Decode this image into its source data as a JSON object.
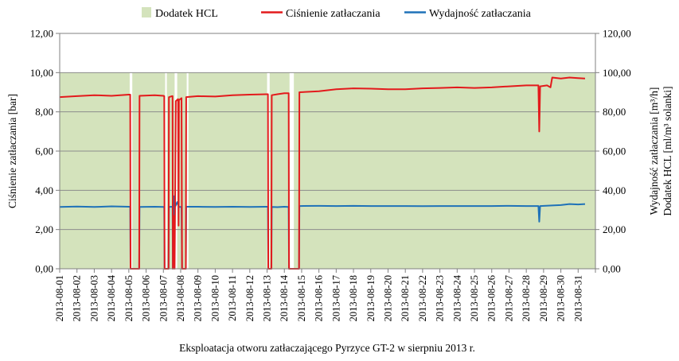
{
  "chart_data": {
    "type": "area",
    "title": "",
    "xlabel": "Eksploatacja otworu zatłaczającego Pyrzyce GT-2 w sierpniu 2013 r.",
    "ylabel_left": "Ciśnienie zatłaczania [bar]",
    "ylabel_right_line1": "Wydajność zatłaczania [m³/h]",
    "ylabel_right_line2": "Dodatek HCL [ml/m³ solanki]",
    "ylim_left": [
      0,
      12
    ],
    "ylim_right": [
      0,
      120
    ],
    "left_ticks": [
      "0,00",
      "2,00",
      "4,00",
      "6,00",
      "8,00",
      "10,00",
      "12,00"
    ],
    "right_ticks": [
      "0,00",
      "20,00",
      "40,00",
      "60,00",
      "80,00",
      "100,00",
      "120,00"
    ],
    "x_range": [
      "2013-08-01",
      "2013-08-32"
    ],
    "categories": [
      "2013-08-01",
      "2013-08-02",
      "2013-08-03",
      "2013-08-04",
      "2013-08-05",
      "2013-08-06",
      "2013-08-07",
      "2013-08-08",
      "2013-08-09",
      "2013-08-10",
      "2013-08-11",
      "2013-08-12",
      "2013-08-13",
      "2013-08-14",
      "2013-08-15",
      "2013-08-16",
      "2013-08-17",
      "2013-08-18",
      "2013-08-19",
      "2013-08-20",
      "2013-08-21",
      "2013-08-22",
      "2013-08-23",
      "2013-08-24",
      "2013-08-25",
      "2013-08-26",
      "2013-08-27",
      "2013-08-28",
      "2013-08-29",
      "2013-08-30",
      "2013-08-31"
    ],
    "grid": "horizontal",
    "legend_position": "top",
    "legend": [
      "Dodatek HCL",
      "Ciśnienie zatłaczania",
      "Wydajność zatłaczania"
    ],
    "series": [
      {
        "name": "Dodatek HCL",
        "axis": "right",
        "kind": "area",
        "color": "#d4e3bc",
        "value": 100,
        "active_intervals": [
          [
            1.0,
            5.05
          ],
          [
            5.2,
            7.1
          ],
          [
            7.2,
            7.65
          ],
          [
            7.8,
            8.35
          ],
          [
            8.45,
            13.0
          ],
          [
            13.15,
            14.3
          ],
          [
            14.55,
            32.0
          ]
        ]
      },
      {
        "name": "Ciśnienie zatłaczania",
        "axis": "left",
        "kind": "line",
        "color": "#e31a1c",
        "points": [
          [
            1.0,
            8.75
          ],
          [
            2.0,
            8.8
          ],
          [
            3.0,
            8.85
          ],
          [
            4.0,
            8.82
          ],
          [
            5.0,
            8.88
          ],
          [
            5.08,
            8.88
          ],
          [
            5.1,
            0.0
          ],
          [
            5.6,
            0.0
          ],
          [
            5.62,
            8.82
          ],
          [
            6.5,
            8.85
          ],
          [
            7.0,
            8.82
          ],
          [
            7.05,
            8.8
          ],
          [
            7.07,
            0.0
          ],
          [
            7.3,
            0.0
          ],
          [
            7.32,
            8.75
          ],
          [
            7.5,
            8.8
          ],
          [
            7.53,
            8.8
          ],
          [
            7.55,
            0.0
          ],
          [
            7.62,
            2.7
          ],
          [
            7.65,
            0.0
          ],
          [
            7.72,
            8.55
          ],
          [
            7.85,
            8.65
          ],
          [
            7.88,
            2.2
          ],
          [
            7.9,
            8.6
          ],
          [
            8.05,
            8.7
          ],
          [
            8.08,
            0.0
          ],
          [
            8.3,
            0.0
          ],
          [
            8.32,
            8.75
          ],
          [
            9.0,
            8.8
          ],
          [
            10.0,
            8.78
          ],
          [
            11.0,
            8.85
          ],
          [
            12.0,
            8.88
          ],
          [
            13.0,
            8.9
          ],
          [
            13.05,
            8.9
          ],
          [
            13.07,
            0.0
          ],
          [
            13.25,
            0.0
          ],
          [
            13.27,
            8.85
          ],
          [
            13.6,
            8.9
          ],
          [
            14.0,
            8.95
          ],
          [
            14.2,
            8.95
          ],
          [
            14.25,
            8.95
          ],
          [
            14.27,
            0.0
          ],
          [
            14.85,
            0.0
          ],
          [
            14.87,
            9.0
          ],
          [
            16.0,
            9.05
          ],
          [
            17.0,
            9.15
          ],
          [
            18.0,
            9.2
          ],
          [
            19.0,
            9.18
          ],
          [
            20.0,
            9.15
          ],
          [
            21.0,
            9.15
          ],
          [
            22.0,
            9.2
          ],
          [
            23.0,
            9.22
          ],
          [
            24.0,
            9.25
          ],
          [
            25.0,
            9.22
          ],
          [
            26.0,
            9.25
          ],
          [
            27.0,
            9.3
          ],
          [
            28.0,
            9.35
          ],
          [
            28.7,
            9.35
          ],
          [
            28.75,
            7.0
          ],
          [
            28.8,
            9.3
          ],
          [
            29.2,
            9.35
          ],
          [
            29.4,
            9.25
          ],
          [
            29.5,
            9.75
          ],
          [
            30.0,
            9.7
          ],
          [
            30.5,
            9.75
          ],
          [
            31.0,
            9.72
          ],
          [
            31.4,
            9.7
          ]
        ]
      },
      {
        "name": "Wydajność zatłaczania",
        "axis": "right",
        "kind": "line",
        "color": "#1f72b8",
        "points": [
          [
            1.0,
            31.5
          ],
          [
            2.0,
            31.7
          ],
          [
            3.0,
            31.5
          ],
          [
            4.0,
            31.8
          ],
          [
            5.0,
            31.6
          ],
          [
            5.08,
            31.6
          ],
          [
            5.1,
            0.0
          ],
          [
            5.6,
            0.0
          ],
          [
            5.62,
            31.5
          ],
          [
            6.5,
            31.6
          ],
          [
            7.0,
            31.5
          ],
          [
            7.05,
            31.5
          ],
          [
            7.07,
            0.0
          ],
          [
            7.3,
            0.0
          ],
          [
            7.32,
            31.5
          ],
          [
            7.5,
            31.6
          ],
          [
            7.53,
            31.6
          ],
          [
            7.55,
            0.0
          ],
          [
            7.62,
            37.0
          ],
          [
            7.7,
            32.0
          ],
          [
            7.8,
            34.0
          ],
          [
            7.9,
            31.5
          ],
          [
            8.05,
            31.5
          ],
          [
            8.08,
            0.0
          ],
          [
            8.3,
            0.0
          ],
          [
            8.32,
            31.6
          ],
          [
            9.0,
            31.6
          ],
          [
            10.0,
            31.5
          ],
          [
            11.0,
            31.6
          ],
          [
            12.0,
            31.5
          ],
          [
            13.0,
            31.6
          ],
          [
            13.05,
            31.6
          ],
          [
            13.07,
            0.0
          ],
          [
            13.25,
            0.0
          ],
          [
            13.27,
            31.5
          ],
          [
            13.6,
            31.4
          ],
          [
            14.0,
            31.6
          ],
          [
            14.2,
            31.5
          ],
          [
            14.25,
            31.5
          ],
          [
            14.27,
            0.0
          ],
          [
            14.85,
            0.0
          ],
          [
            14.87,
            32.0
          ],
          [
            16.0,
            32.1
          ],
          [
            17.0,
            32.0
          ],
          [
            18.0,
            32.1
          ],
          [
            19.0,
            32.0
          ],
          [
            20.0,
            32.0
          ],
          [
            21.0,
            32.0
          ],
          [
            22.0,
            31.9
          ],
          [
            23.0,
            32.0
          ],
          [
            24.0,
            32.0
          ],
          [
            25.0,
            32.0
          ],
          [
            26.0,
            32.0
          ],
          [
            27.0,
            32.1
          ],
          [
            28.0,
            32.0
          ],
          [
            28.7,
            32.0
          ],
          [
            28.75,
            24.0
          ],
          [
            28.8,
            32.0
          ],
          [
            29.5,
            32.3
          ],
          [
            30.0,
            32.5
          ],
          [
            30.5,
            33.0
          ],
          [
            31.0,
            32.8
          ],
          [
            31.4,
            33.0
          ]
        ]
      }
    ]
  }
}
